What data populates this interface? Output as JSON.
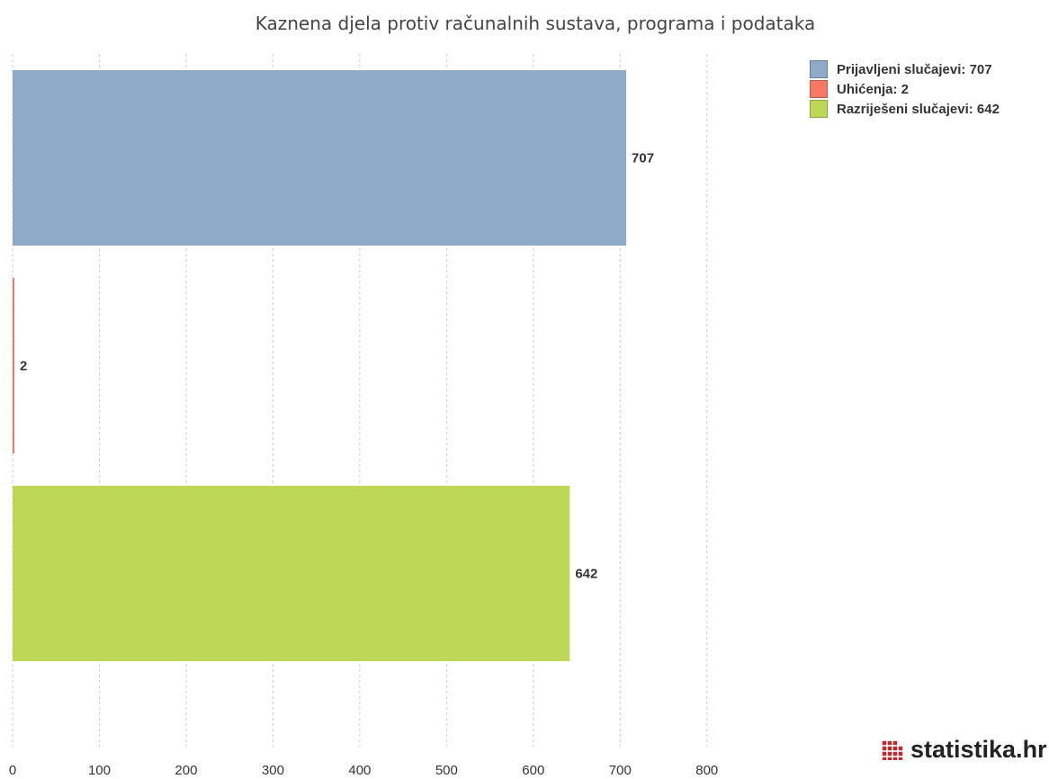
{
  "chart_data": {
    "type": "bar",
    "orientation": "horizontal",
    "title": "Kaznena djela protiv računalnih sustava, programa i podataka",
    "categories": [
      "Prijavljeni slučajevi",
      "Uhićenja",
      "Razriješeni slučajevi"
    ],
    "values": [
      707,
      2,
      642
    ],
    "colors": [
      "#8eaac8",
      "#f47a64",
      "#bcd856"
    ],
    "xlim": [
      0,
      800
    ],
    "xticks": [
      0,
      100,
      200,
      300,
      400,
      500,
      600,
      700,
      800
    ],
    "grid": true,
    "legend_position": "top-right",
    "legend": [
      {
        "label": "Prijavljeni slučajevi: 707",
        "color": "#8eaac8"
      },
      {
        "label": "Uhićenja: 2",
        "color": "#f47a64"
      },
      {
        "label": "Razriješeni slučajevi: 642",
        "color": "#bcd856"
      }
    ]
  },
  "brand": {
    "name_main": "statistika.",
    "name_tld": "hr",
    "icon": "dot-grid-icon",
    "icon_color": "#c62828"
  }
}
